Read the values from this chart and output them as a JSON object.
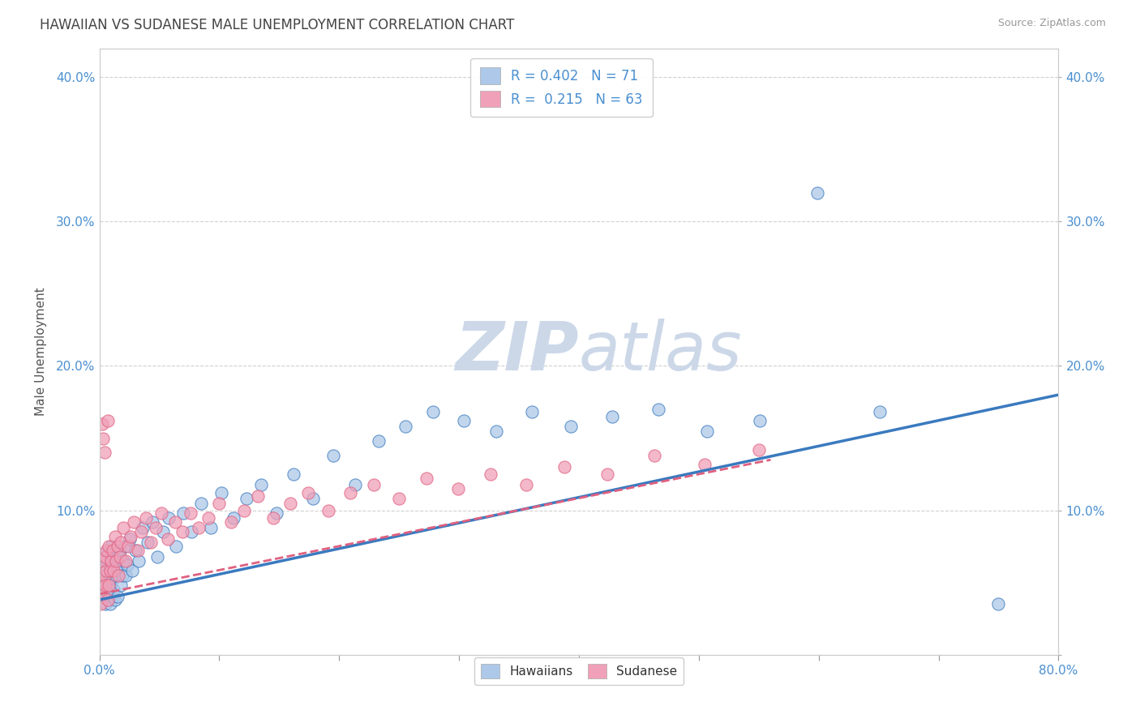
{
  "title": "HAWAIIAN VS SUDANESE MALE UNEMPLOYMENT CORRELATION CHART",
  "source": "Source: ZipAtlas.com",
  "ylabel": "Male Unemployment",
  "xlabel": "",
  "xlim": [
    0.0,
    0.8
  ],
  "ylim": [
    0.0,
    0.42
  ],
  "xticks": [
    0.0,
    0.1,
    0.2,
    0.3,
    0.4,
    0.5,
    0.6,
    0.7,
    0.8
  ],
  "xticklabels": [
    "0.0%",
    "",
    "",
    "",
    "",
    "",
    "",
    "",
    "80.0%"
  ],
  "yticks": [
    0.0,
    0.1,
    0.2,
    0.3,
    0.4
  ],
  "yticklabels": [
    "",
    "10.0%",
    "20.0%",
    "30.0%",
    "40.0%"
  ],
  "hawaiian_R": 0.402,
  "hawaiian_N": 71,
  "sudanese_R": 0.215,
  "sudanese_N": 63,
  "hawaiian_color": "#adc8e8",
  "sudanese_color": "#f0a0b8",
  "hawaiian_line_color": "#3a7abf",
  "sudanese_line_color": "#e06080",
  "watermark_color": "#ccd8e8",
  "hawaiian_scatter_x": [
    0.001,
    0.002,
    0.003,
    0.004,
    0.005,
    0.005,
    0.006,
    0.006,
    0.007,
    0.007,
    0.008,
    0.008,
    0.009,
    0.009,
    0.01,
    0.01,
    0.011,
    0.011,
    0.012,
    0.012,
    0.013,
    0.013,
    0.014,
    0.015,
    0.015,
    0.016,
    0.017,
    0.018,
    0.019,
    0.02,
    0.021,
    0.022,
    0.023,
    0.025,
    0.027,
    0.03,
    0.033,
    0.036,
    0.04,
    0.044,
    0.048,
    0.053,
    0.058,
    0.064,
    0.07,
    0.077,
    0.085,
    0.093,
    0.102,
    0.112,
    0.123,
    0.135,
    0.148,
    0.162,
    0.178,
    0.195,
    0.213,
    0.233,
    0.255,
    0.278,
    0.304,
    0.331,
    0.361,
    0.393,
    0.428,
    0.466,
    0.507,
    0.551,
    0.599,
    0.651,
    0.75
  ],
  "hawaiian_scatter_y": [
    0.06,
    0.05,
    0.04,
    0.07,
    0.055,
    0.035,
    0.065,
    0.045,
    0.055,
    0.04,
    0.07,
    0.05,
    0.06,
    0.035,
    0.075,
    0.05,
    0.065,
    0.04,
    0.07,
    0.045,
    0.06,
    0.038,
    0.055,
    0.068,
    0.04,
    0.058,
    0.072,
    0.048,
    0.055,
    0.065,
    0.075,
    0.055,
    0.062,
    0.08,
    0.058,
    0.072,
    0.065,
    0.088,
    0.078,
    0.092,
    0.068,
    0.085,
    0.095,
    0.075,
    0.098,
    0.085,
    0.105,
    0.088,
    0.112,
    0.095,
    0.108,
    0.118,
    0.098,
    0.125,
    0.108,
    0.138,
    0.118,
    0.148,
    0.158,
    0.168,
    0.162,
    0.155,
    0.168,
    0.158,
    0.165,
    0.17,
    0.155,
    0.162,
    0.32,
    0.168,
    0.035
  ],
  "sudanese_scatter_x": [
    0.001,
    0.001,
    0.002,
    0.002,
    0.003,
    0.003,
    0.004,
    0.004,
    0.005,
    0.005,
    0.006,
    0.006,
    0.007,
    0.007,
    0.008,
    0.008,
    0.009,
    0.01,
    0.011,
    0.012,
    0.013,
    0.014,
    0.015,
    0.016,
    0.017,
    0.018,
    0.02,
    0.022,
    0.024,
    0.026,
    0.029,
    0.032,
    0.035,
    0.039,
    0.043,
    0.047,
    0.052,
    0.057,
    0.063,
    0.069,
    0.076,
    0.083,
    0.091,
    0.1,
    0.11,
    0.121,
    0.132,
    0.145,
    0.159,
    0.174,
    0.191,
    0.209,
    0.229,
    0.25,
    0.273,
    0.299,
    0.326,
    0.356,
    0.388,
    0.424,
    0.463,
    0.505,
    0.55
  ],
  "sudanese_scatter_y": [
    0.05,
    0.035,
    0.065,
    0.16,
    0.042,
    0.15,
    0.055,
    0.14,
    0.048,
    0.068,
    0.058,
    0.072,
    0.038,
    0.162,
    0.048,
    0.075,
    0.058,
    0.065,
    0.072,
    0.058,
    0.082,
    0.065,
    0.075,
    0.055,
    0.068,
    0.078,
    0.088,
    0.065,
    0.075,
    0.082,
    0.092,
    0.072,
    0.085,
    0.095,
    0.078,
    0.088,
    0.098,
    0.08,
    0.092,
    0.085,
    0.098,
    0.088,
    0.095,
    0.105,
    0.092,
    0.1,
    0.11,
    0.095,
    0.105,
    0.112,
    0.1,
    0.112,
    0.118,
    0.108,
    0.122,
    0.115,
    0.125,
    0.118,
    0.13,
    0.125,
    0.138,
    0.132,
    0.142
  ],
  "hawaiian_trend_x0": 0.0,
  "hawaiian_trend_y0": 0.038,
  "hawaiian_trend_x1": 0.8,
  "hawaiian_trend_y1": 0.18,
  "sudanese_trend_x0": 0.0,
  "sudanese_trend_y0": 0.042,
  "sudanese_trend_x1": 0.56,
  "sudanese_trend_y1": 0.135
}
